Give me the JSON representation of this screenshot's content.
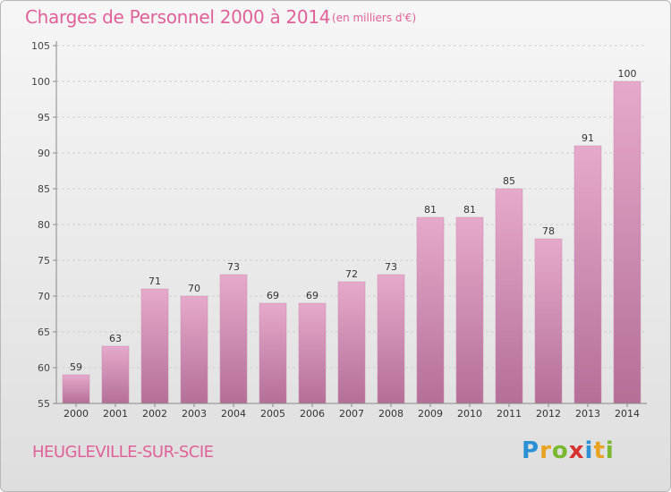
{
  "header": {
    "title": "Charges de Personnel 2000 à 2014",
    "subtitle": "(en milliers d'€)"
  },
  "footer": {
    "town": "HEUGLEVILLE-SUR-SCIE",
    "logo_text": "Proxiti"
  },
  "colors": {
    "accent": "#e0619a",
    "bar_top": "#e6a9cb",
    "bar_bottom": "#b46f97"
  },
  "chart_data": {
    "type": "bar",
    "categories": [
      "2000",
      "2001",
      "2002",
      "2003",
      "2004",
      "2005",
      "2006",
      "2007",
      "2008",
      "2009",
      "2010",
      "2011",
      "2012",
      "2013",
      "2014"
    ],
    "values": [
      59,
      63,
      71,
      70,
      73,
      69,
      69,
      72,
      73,
      81,
      81,
      85,
      78,
      91,
      100
    ],
    "ylim": [
      55,
      105
    ],
    "yticks": [
      55,
      60,
      65,
      70,
      75,
      80,
      85,
      90,
      95,
      100,
      105
    ],
    "grid": true,
    "data_labels": true
  }
}
